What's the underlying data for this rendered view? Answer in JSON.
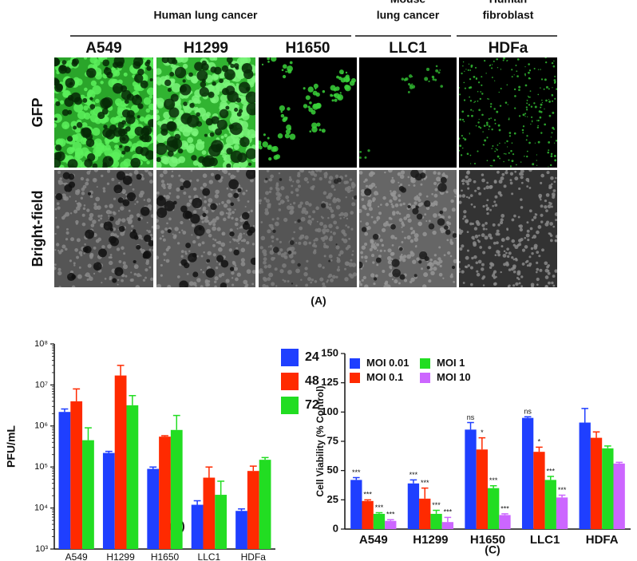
{
  "panel_a": {
    "groups": [
      {
        "lines": [
          "Human lung cancer"
        ]
      },
      {
        "lines": [
          "Mouse",
          "lung cancer"
        ]
      },
      {
        "lines": [
          "Human",
          "fibroblast"
        ]
      }
    ],
    "cell_lines": [
      "A549",
      "H1299",
      "H1650",
      "LLC1",
      "HDFa"
    ],
    "rows": [
      "GFP",
      "Bright-field"
    ],
    "panel_label": "(A)"
  },
  "chart_data": [
    {
      "type": "bar",
      "panel_label": "(B)",
      "y_label": "PFU/mL",
      "log_scale": true,
      "legend": "right",
      "categories": [
        "A549",
        "H1299",
        "H1650",
        "LLC1",
        "HDFa"
      ],
      "ylim": [
        1000,
        100000000
      ],
      "yticks": [
        {
          "value": 1000,
          "label": "10³"
        },
        {
          "value": 10000,
          "label": "10⁴"
        },
        {
          "value": 100000,
          "label": "10⁵"
        },
        {
          "value": 1000000,
          "label": "10⁶"
        },
        {
          "value": 10000000,
          "label": "10⁷"
        },
        {
          "value": 100000000,
          "label": "10⁸"
        }
      ],
      "series": [
        {
          "name": "24",
          "color": "#1f3fff",
          "values": [
            2200000,
            220000,
            90000,
            12000,
            8500
          ],
          "errors": [
            400000,
            20000,
            10000,
            3000,
            1000
          ]
        },
        {
          "name": "48",
          "color": "#ff2a00",
          "values": [
            4000000,
            17000000,
            550000,
            55000,
            80000
          ],
          "errors": [
            4000000,
            13000000,
            30000,
            45000,
            25000
          ]
        },
        {
          "name": "72",
          "color": "#22dd22",
          "values": [
            450000,
            3200000,
            800000,
            21000,
            150000
          ],
          "errors": [
            450000,
            2300000,
            1000000,
            24000,
            20000
          ]
        }
      ]
    },
    {
      "type": "bar",
      "panel_label": "(C)",
      "y_label": "Cell Viability (% Control)",
      "log_scale": false,
      "legend": "top-left",
      "categories": [
        "A549",
        "H1299",
        "H1650",
        "LLC1",
        "HDFA"
      ],
      "ylim": [
        0,
        150
      ],
      "yticks": [
        0,
        25,
        50,
        75,
        100,
        125,
        150
      ],
      "series": [
        {
          "name": "MOI 0.01",
          "color": "#1f3fff",
          "values": [
            42,
            39,
            85,
            95,
            91
          ],
          "errors": [
            2,
            3,
            6,
            1,
            12
          ],
          "significance": [
            "***",
            "***",
            "ns",
            "ns",
            null
          ]
        },
        {
          "name": "MOI 0.1",
          "color": "#ff2a00",
          "values": [
            24,
            26,
            68,
            66,
            78
          ],
          "errors": [
            1,
            9,
            10,
            4,
            5
          ],
          "significance": [
            "***",
            "***",
            "*",
            "*",
            null
          ]
        },
        {
          "name": "MOI 1",
          "color": "#22dd22",
          "values": [
            13,
            13,
            35,
            42,
            69
          ],
          "errors": [
            1,
            3,
            2,
            3,
            2
          ],
          "significance": [
            "***",
            "***",
            "***",
            "***",
            null
          ]
        },
        {
          "name": "MOI 10",
          "color": "#cc66ff",
          "values": [
            7,
            6,
            12,
            27,
            56
          ],
          "errors": [
            1,
            4,
            1,
            2,
            1
          ],
          "significance": [
            "***",
            "***",
            "***",
            "***",
            null
          ]
        }
      ]
    }
  ]
}
